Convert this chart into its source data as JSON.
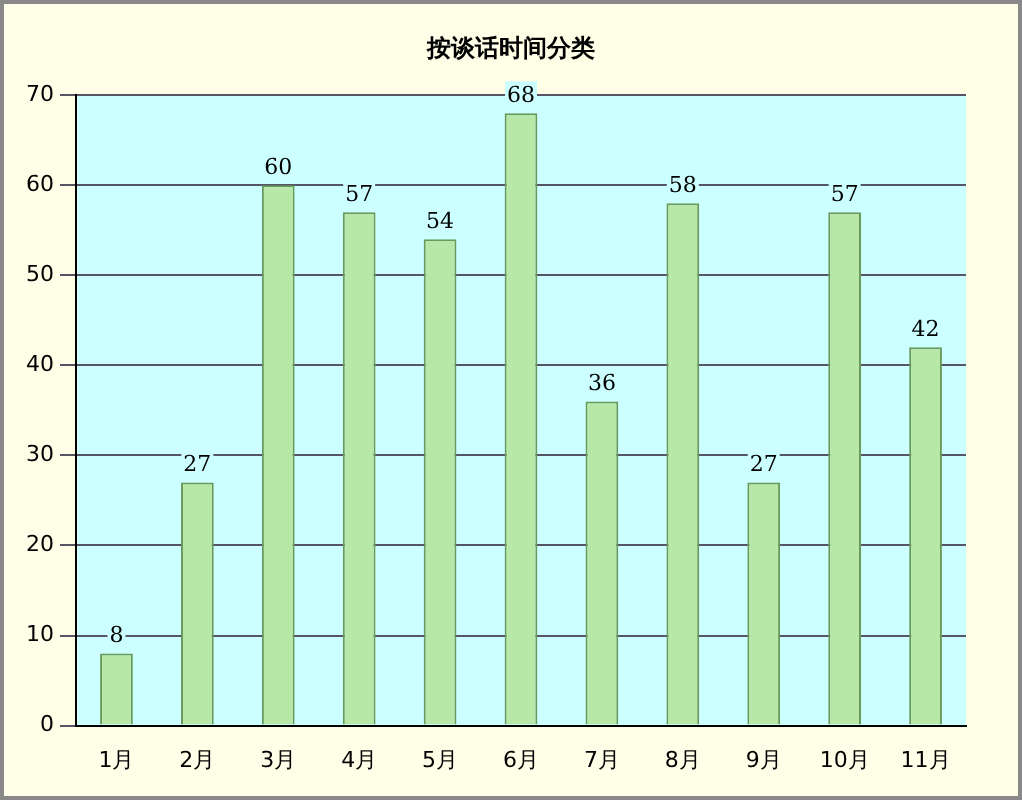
{
  "chart_data": {
    "type": "bar",
    "title": "按谈话时间分类",
    "categories": [
      "1月",
      "2月",
      "3月",
      "4月",
      "5月",
      "6月",
      "7月",
      "8月",
      "9月",
      "10月",
      "11月"
    ],
    "values": [
      8,
      27,
      60,
      57,
      54,
      68,
      36,
      58,
      27,
      57,
      42
    ],
    "color": "#b8e8a8",
    "ylim": [
      0,
      70
    ],
    "yticks": [
      0,
      10,
      20,
      30,
      40,
      50,
      60,
      70
    ],
    "grid": "y",
    "data_labels": true,
    "legend": false
  }
}
